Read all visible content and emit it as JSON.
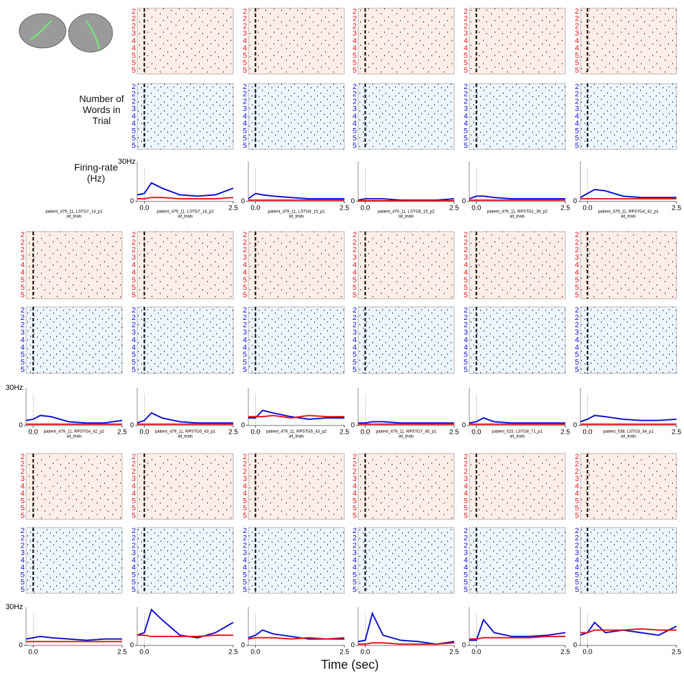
{
  "labels": {
    "words": "Number of Words in Trial",
    "rate": "Firing-rate (Hz)",
    "time": "Time (sec)",
    "scale": "30Hz"
  },
  "axes": {
    "x": [
      -0.2,
      0,
      0.2,
      0.5,
      1.0,
      1.5,
      2.0,
      2.5
    ],
    "xlim": [
      -0.2,
      2.5
    ],
    "xticks": [
      {
        "value": 0,
        "label": "0.0"
      },
      2.5
    ],
    "ylim": [
      0,
      30
    ],
    "yticks": [
      0
    ],
    "raster_yticks": [
      "2",
      "2",
      "2",
      "3",
      "4",
      "4",
      "5",
      "5",
      "5"
    ],
    "colors": [
      "#1010d0",
      "#e01818"
    ]
  },
  "chart_data": [
    {
      "type": "line",
      "series": [
        {
          "values": [
            5,
            6,
            14,
            10,
            5,
            4,
            5,
            10
          ]
        },
        {
          "values": [
            2,
            2,
            3,
            3,
            2,
            2,
            2,
            3
          ]
        }
      ]
    },
    {
      "type": "line",
      "series": [
        {
          "values": [
            2,
            6,
            5,
            4,
            3,
            2,
            2,
            2
          ]
        },
        {
          "values": [
            1,
            1,
            1,
            1,
            1,
            1,
            1,
            1
          ]
        }
      ]
    },
    {
      "type": "line",
      "series": [
        {
          "values": [
            1,
            2,
            2,
            2,
            1,
            1,
            1,
            2
          ]
        },
        {
          "values": [
            0.5,
            0.5,
            0.5,
            0.5,
            0.5,
            0.5,
            0.5,
            0.5
          ]
        }
      ]
    },
    {
      "type": "line",
      "series": [
        {
          "values": [
            2,
            4,
            4,
            3,
            2,
            2,
            2,
            2
          ]
        },
        {
          "values": [
            1,
            1,
            1,
            1,
            1,
            1,
            1,
            1
          ]
        }
      ]
    },
    {
      "type": "line",
      "series": [
        {
          "values": [
            3,
            6,
            9,
            8,
            4,
            3,
            3,
            3
          ]
        },
        {
          "values": [
            2,
            2,
            2,
            2,
            2,
            2,
            2,
            2
          ]
        }
      ]
    },
    {
      "type": "line",
      "title": "patient_479_11, LSTG7_14_p1",
      "subtitle": "all_trials",
      "series": [
        {
          "values": [
            4,
            5,
            8,
            7,
            3,
            2,
            2,
            4
          ]
        },
        {
          "values": [
            1,
            1,
            1,
            1,
            1,
            1,
            1,
            1
          ]
        }
      ]
    },
    {
      "type": "line",
      "title": "patient_479_11, LSTG7_14_p2",
      "subtitle": "all_trials",
      "series": [
        {
          "values": [
            2,
            4,
            10,
            6,
            3,
            2,
            2,
            2
          ]
        },
        {
          "values": [
            1,
            1,
            1,
            1,
            1,
            1,
            1,
            1
          ]
        }
      ]
    },
    {
      "type": "line",
      "title": "patient_479_11, LSTG8_15_p1",
      "subtitle": "all_trials",
      "series": [
        {
          "values": [
            6,
            6,
            12,
            10,
            7,
            5,
            6,
            6
          ]
        },
        {
          "values": [
            7,
            7,
            7,
            8,
            6,
            8,
            7,
            7
          ]
        }
      ]
    },
    {
      "type": "line",
      "title": "patient_479_11, LSTG8_15_p2",
      "subtitle": "all_trials",
      "series": [
        {
          "values": [
            2,
            2,
            3,
            3,
            2,
            2,
            2,
            2
          ]
        },
        {
          "values": [
            1,
            1,
            1,
            1,
            1,
            1,
            1,
            1
          ]
        }
      ]
    },
    {
      "type": "line",
      "title": "patient_479_11, RPSTG1_39_p2",
      "subtitle": "all_trials",
      "series": [
        {
          "values": [
            2,
            3,
            6,
            3,
            2,
            2,
            2,
            2
          ]
        },
        {
          "values": [
            1,
            1,
            1,
            1,
            1,
            1,
            1,
            1
          ]
        }
      ]
    },
    {
      "type": "line",
      "title": "patient_479_11, RPSTG4_42_p1",
      "subtitle": "all_trials",
      "series": [
        {
          "values": [
            3,
            5,
            8,
            7,
            5,
            4,
            4,
            5
          ]
        },
        {
          "values": [
            1,
            1,
            1,
            1,
            1,
            1,
            1,
            1
          ]
        }
      ]
    },
    {
      "type": "line",
      "title": "patient_479_11, RPSTG4_42_p2",
      "subtitle": "all_trials",
      "series": [
        {
          "values": [
            5,
            6,
            7,
            6,
            5,
            4,
            5,
            5
          ]
        },
        {
          "values": [
            3,
            3,
            3,
            3,
            3,
            3,
            3,
            3
          ]
        }
      ]
    },
    {
      "type": "line",
      "title": "patient_479_11, RPSTG5_43_p1",
      "subtitle": "all_trials",
      "series": [
        {
          "values": [
            8,
            10,
            28,
            20,
            8,
            6,
            10,
            18
          ]
        },
        {
          "values": [
            8,
            8,
            7,
            7,
            7,
            7,
            8,
            8
          ]
        }
      ]
    },
    {
      "type": "line",
      "title": "patient_479_11, RPSTG5_43_p2",
      "subtitle": "all_trials",
      "series": [
        {
          "values": [
            6,
            8,
            12,
            9,
            7,
            5,
            5,
            5
          ]
        },
        {
          "values": [
            5,
            6,
            6,
            6,
            5,
            6,
            5,
            6
          ]
        }
      ]
    },
    {
      "type": "line",
      "title": "patient_479_11, RPSTG7_45_p1",
      "subtitle": "all_trials",
      "series": [
        {
          "values": [
            3,
            4,
            25,
            8,
            4,
            3,
            1,
            3
          ]
        },
        {
          "values": [
            1,
            1,
            2,
            2,
            1,
            1,
            1,
            2
          ]
        }
      ]
    },
    {
      "type": "line",
      "title": "patient_515, LSTG8_71_p1",
      "subtitle": "all_trials",
      "series": [
        {
          "values": [
            4,
            4,
            20,
            10,
            7,
            7,
            8,
            10
          ]
        },
        {
          "values": [
            5,
            5,
            6,
            6,
            6,
            6,
            7,
            7
          ]
        }
      ]
    },
    {
      "type": "line",
      "title": "patient_538, LSTG3_34_p1",
      "subtitle": "all_trials",
      "series": [
        {
          "values": [
            8,
            10,
            18,
            10,
            12,
            10,
            8,
            15
          ]
        },
        {
          "values": [
            10,
            10,
            12,
            12,
            12,
            13,
            12,
            12
          ]
        }
      ]
    }
  ]
}
